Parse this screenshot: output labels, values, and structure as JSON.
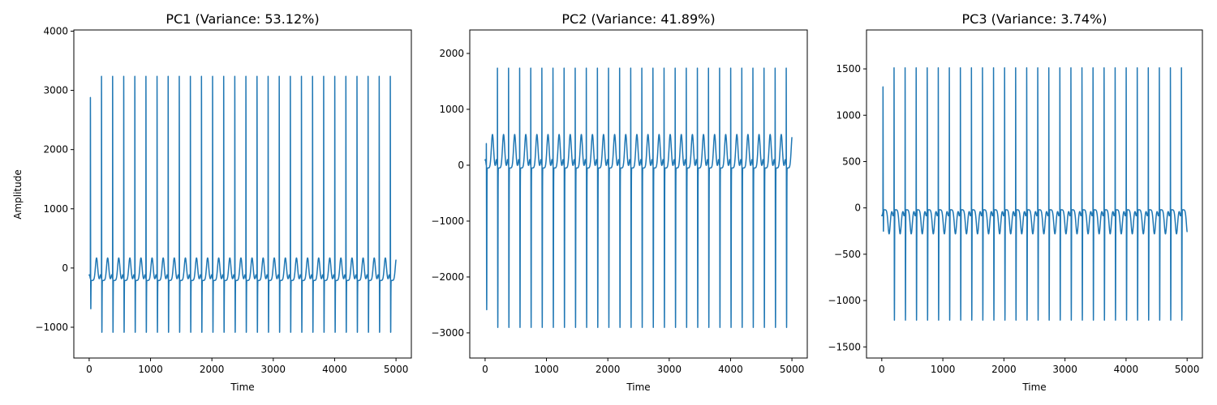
{
  "figure": {
    "background": "#ffffff"
  },
  "chart_data": [
    {
      "type": "line",
      "title": "PC1 (Variance: 53.12%)",
      "xlabel": "Time",
      "ylabel": "Amplitude",
      "xlim": [
        -250,
        5250
      ],
      "ylim": [
        -1520,
        4020
      ],
      "xticks": [
        0,
        1000,
        2000,
        3000,
        4000,
        5000
      ],
      "yticks": [
        -1000,
        0,
        1000,
        2000,
        3000,
        4000
      ],
      "grid": false,
      "color": "#1f77b4",
      "signal": {
        "n": 5000,
        "period": 181,
        "baseline": -210,
        "wave_amp": 380,
        "spike_up": 3500,
        "spike_down": -1170,
        "first_beat": 20,
        "first_up": 3120,
        "first_down": -750
      }
    },
    {
      "type": "line",
      "title": "PC2 (Variance: 41.89%)",
      "xlabel": "Time",
      "ylabel": "",
      "xlim": [
        -250,
        5250
      ],
      "ylim": [
        -3450,
        2420
      ],
      "xticks": [
        0,
        1000,
        2000,
        3000,
        4000,
        5000
      ],
      "yticks": [
        -3000,
        -2000,
        -1000,
        0,
        1000,
        2000
      ],
      "grid": false,
      "color": "#1f77b4",
      "signal": {
        "n": 5000,
        "period": 181,
        "baseline": -50,
        "wave_amp": 600,
        "spike_up": 1950,
        "spike_down": -2950,
        "first_beat": 20,
        "first_up": 580,
        "first_down": -2600
      }
    },
    {
      "type": "line",
      "title": "PC3 (Variance: 3.74%)",
      "xlabel": "Time",
      "ylabel": "",
      "xlim": [
        -250,
        5250
      ],
      "ylim": [
        -1620,
        1920
      ],
      "xticks": [
        0,
        1000,
        2000,
        3000,
        4000,
        5000
      ],
      "yticks": [
        -1500,
        -1000,
        -500,
        0,
        500,
        1000,
        1500
      ],
      "grid": false,
      "color": "#1f77b4",
      "signal": {
        "n": 5000,
        "period": 181,
        "baseline": -20,
        "wave_amp": -260,
        "spike_up": 1600,
        "spike_down": -1250,
        "first_beat": 20,
        "first_up": 1340,
        "first_down": -280
      }
    }
  ]
}
